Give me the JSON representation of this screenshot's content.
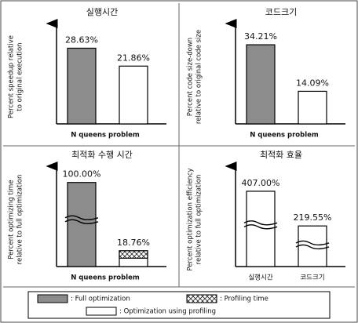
{
  "chart_data": [
    {
      "type": "bar",
      "title": "실행시간",
      "ylabel": [
        "Percent speedup relative",
        "to original execution"
      ],
      "xlabel": "N queens problem",
      "values": [
        28.63,
        21.86
      ],
      "value_labels": [
        "28.63%",
        "21.86%"
      ],
      "colors": [
        "#8c8c8c",
        "#ffffff"
      ],
      "hatched": [
        false,
        false
      ],
      "broken": [
        false,
        false
      ],
      "ylim": [
        0,
        35
      ]
    },
    {
      "type": "bar",
      "title": "코드크기",
      "ylabel": [
        "Percent code size-down",
        "relative to original code size"
      ],
      "xlabel": "N queens problem",
      "values": [
        34.21,
        14.09
      ],
      "value_labels": [
        "34.21%",
        "14.09%"
      ],
      "colors": [
        "#8c8c8c",
        "#ffffff"
      ],
      "hatched": [
        false,
        false
      ],
      "broken": [
        false,
        false
      ],
      "ylim": [
        0,
        40
      ]
    },
    {
      "type": "bar",
      "title": "최적화 수행 시간",
      "ylabel": [
        "Percent optimizing time",
        "relative to full optimization"
      ],
      "xlabel": "N queens problem",
      "values": [
        100.0,
        18.76
      ],
      "value_labels": [
        "100.00%",
        "18.76%"
      ],
      "colors": [
        "#8c8c8c",
        "#ffffff"
      ],
      "hatched": [
        false,
        true
      ],
      "broken": [
        true,
        false
      ],
      "ylim": [
        0,
        110
      ]
    },
    {
      "type": "bar",
      "title": "최적화 효율",
      "ylabel": [
        "Percent optimization efficiency",
        "relative to full optimization"
      ],
      "categories": [
        "실행시간",
        "코드크기"
      ],
      "values": [
        407.0,
        219.55
      ],
      "value_labels": [
        "407.00%",
        "219.55%"
      ],
      "colors": [
        "#ffffff",
        "#ffffff"
      ],
      "hatched": [
        false,
        false
      ],
      "broken": [
        true,
        true
      ],
      "ylim": [
        0,
        500
      ]
    }
  ],
  "legend": [
    {
      "label": ": Full optimization",
      "color": "#8c8c8c"
    },
    {
      "label": ": Profiling time",
      "color": "hatch"
    },
    {
      "label": ": Optimization using profiling",
      "color": "#ffffff"
    }
  ]
}
